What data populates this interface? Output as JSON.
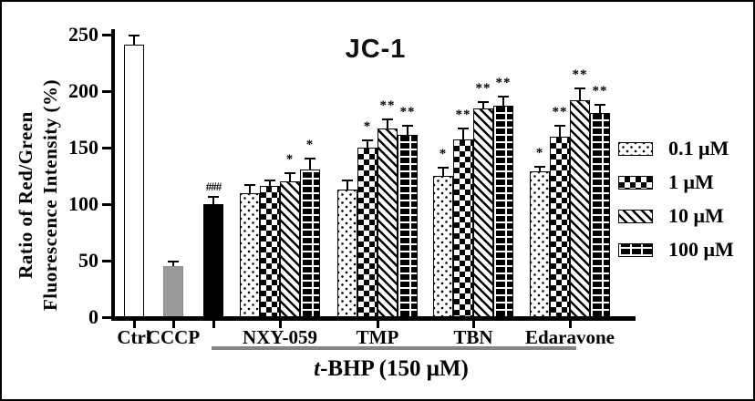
{
  "chart_data": {
    "type": "bar",
    "title": "JC-1",
    "ylabel_line1": "Ratio of Red/Green",
    "ylabel_line2": "Fluorescence Intensity (%)",
    "ylim": [
      0,
      250
    ],
    "yticks": [
      0,
      50,
      100,
      150,
      200,
      250
    ],
    "grid": false,
    "legend_position": "right",
    "treatment_label": {
      "italic": "t",
      "rest": "-BHP (150 μM)"
    },
    "legend": [
      {
        "label": "0.1 μM",
        "pattern": "dots"
      },
      {
        "label": "1 μM",
        "pattern": "checker"
      },
      {
        "label": "10 μM",
        "pattern": "diag"
      },
      {
        "label": "100 μM",
        "pattern": "brick"
      }
    ],
    "single_bars": [
      {
        "label": "Ctrl",
        "value": 241,
        "error": 9,
        "fill": "white",
        "annotation": ""
      },
      {
        "label": "CCCP",
        "value": 45,
        "error": 5,
        "fill": "gray",
        "annotation": ""
      },
      {
        "label": "",
        "value": 100,
        "error": 7,
        "fill": "black",
        "annotation": "###"
      }
    ],
    "groups": [
      {
        "label": "NXY-059",
        "bars": [
          {
            "value": 110,
            "error": 8,
            "sig": ""
          },
          {
            "value": 116,
            "error": 6,
            "sig": ""
          },
          {
            "value": 120,
            "error": 8,
            "sig": "*"
          },
          {
            "value": 131,
            "error": 10,
            "sig": "*"
          }
        ]
      },
      {
        "label": "TMP",
        "bars": [
          {
            "value": 113,
            "error": 9,
            "sig": ""
          },
          {
            "value": 150,
            "error": 7,
            "sig": "*"
          },
          {
            "value": 167,
            "error": 9,
            "sig": "**"
          },
          {
            "value": 161,
            "error": 9,
            "sig": "**"
          }
        ]
      },
      {
        "label": "TBN",
        "bars": [
          {
            "value": 125,
            "error": 8,
            "sig": "*"
          },
          {
            "value": 157,
            "error": 11,
            "sig": "**"
          },
          {
            "value": 185,
            "error": 6,
            "sig": "**"
          },
          {
            "value": 187,
            "error": 9,
            "sig": "**"
          }
        ]
      },
      {
        "label": "Edaravone",
        "bars": [
          {
            "value": 129,
            "error": 5,
            "sig": "*"
          },
          {
            "value": 160,
            "error": 10,
            "sig": "**"
          },
          {
            "value": 192,
            "error": 11,
            "sig": "**"
          },
          {
            "value": 181,
            "error": 8,
            "sig": "**"
          }
        ]
      }
    ],
    "colors": {
      "black": "#000000",
      "white": "#ffffff",
      "gray_bar": "#9a9a9a",
      "bracket_line": "#858585"
    }
  }
}
